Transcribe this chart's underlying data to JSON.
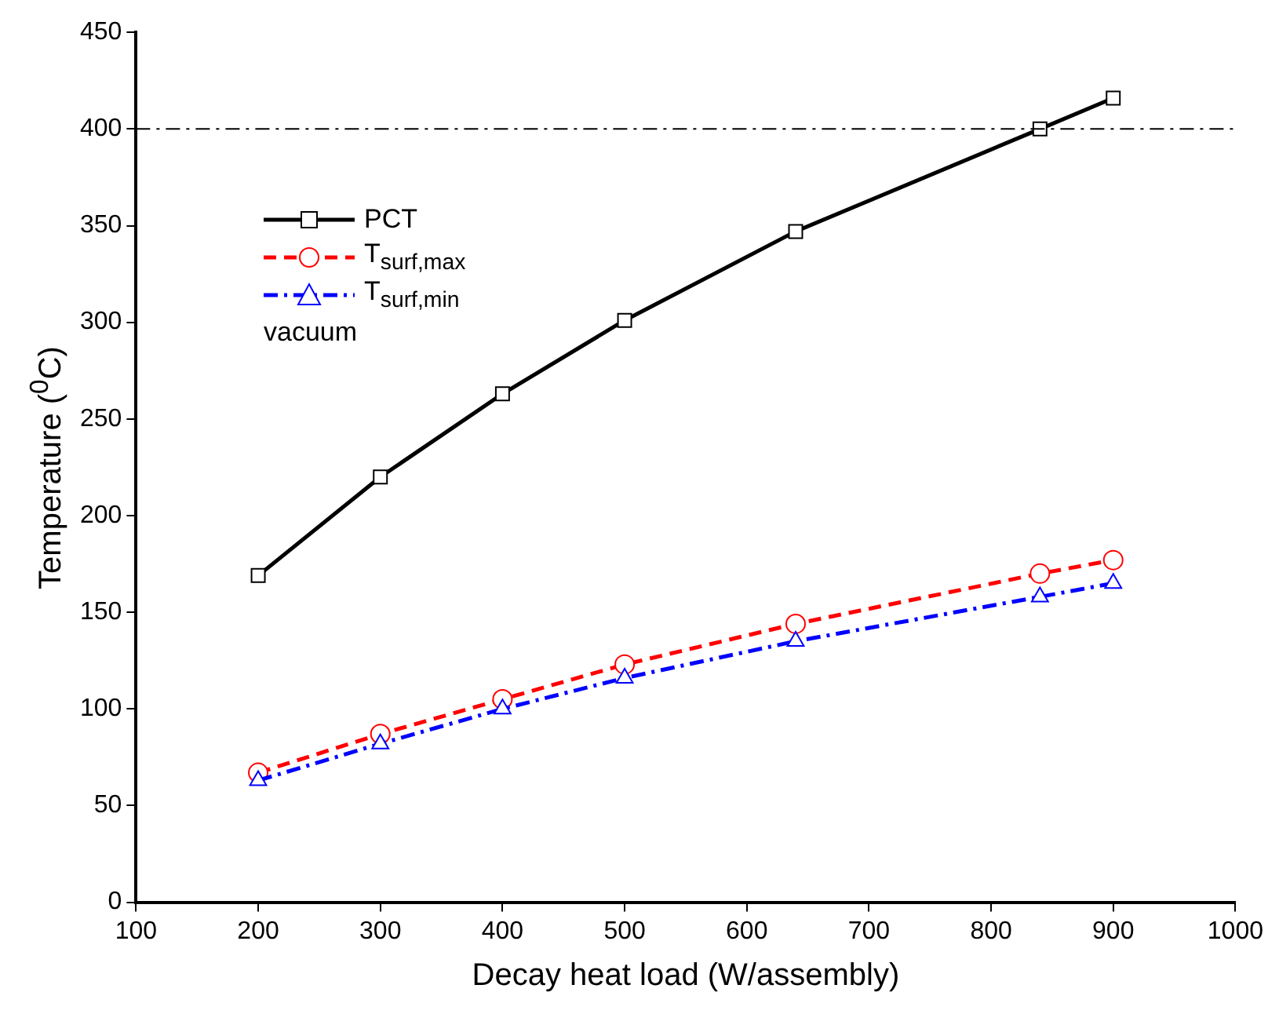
{
  "chart_data": {
    "type": "line",
    "xlabel": "Decay heat load (W/assembly)",
    "ylabel": "Temperature ($^{0}$C)",
    "x": [
      200,
      300,
      400,
      500,
      640,
      840,
      900
    ],
    "series": [
      {
        "name": "PCT",
        "color": "#000000",
        "marker": "square",
        "line_style": "solid",
        "values": [
          169,
          220,
          263,
          301,
          347,
          400,
          416
        ]
      },
      {
        "name": "T$_{surf,max}$",
        "color": "#ff0000",
        "marker": "circle",
        "line_style": "dashed",
        "values": [
          67,
          87,
          105,
          123,
          144,
          170,
          177
        ]
      },
      {
        "name": "T$_{surf,min}$",
        "color": "#0000ff",
        "marker": "triangle",
        "line_style": "dashdot",
        "values": [
          63,
          82,
          100,
          116,
          135,
          158,
          165
        ]
      }
    ],
    "xlim": [
      100,
      1000
    ],
    "xticks": [
      100,
      200,
      300,
      400,
      500,
      600,
      700,
      800,
      900,
      1000
    ],
    "ylim": [
      0,
      450
    ],
    "yticks": [
      0,
      50,
      100,
      150,
      200,
      250,
      300,
      350,
      400,
      450
    ],
    "ref_lines": [
      {
        "axis": "y",
        "value": 400,
        "color": "#000000",
        "line_style": "dashdot"
      }
    ],
    "annotations": [
      "vacuum"
    ],
    "grid": false,
    "legend": "top left"
  }
}
